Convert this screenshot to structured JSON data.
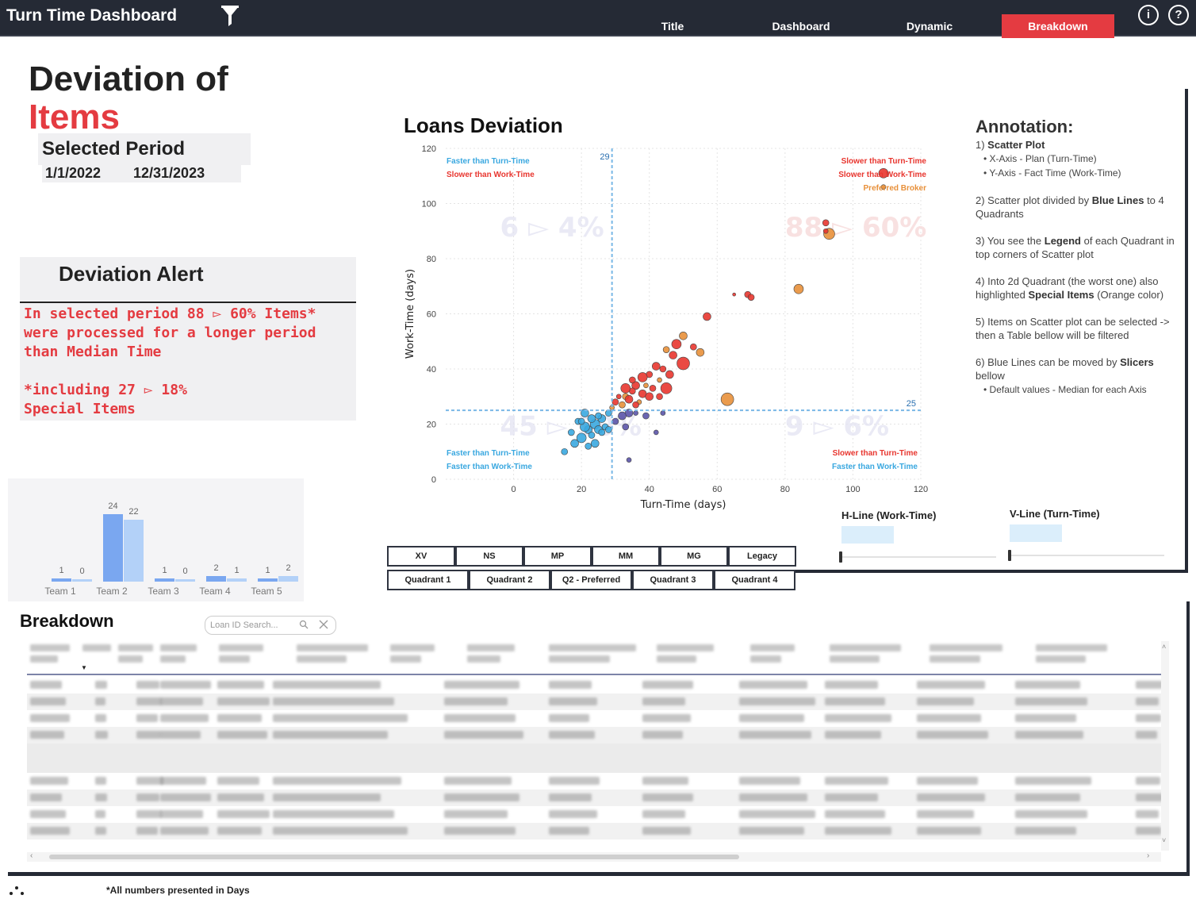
{
  "header": {
    "app_title": "Turn Time Dashboard",
    "tabs": [
      "Title",
      "Dashboard",
      "Dynamic",
      "Breakdown"
    ],
    "active_tab": "Breakdown",
    "info_icon": "i",
    "help_icon": "?",
    "accent_color": "#e43b41"
  },
  "title": {
    "line1": "Deviation of",
    "line2": "Items"
  },
  "period": {
    "label": "Selected Period",
    "start": "1/1/2022",
    "end": "12/31/2023"
  },
  "alert": {
    "title": "Deviation Alert",
    "text": "In selected period 88 ▻ 60% Items*\nwere processed for a longer period\nthan Median Time\n\n*including 27 ▻ 18%\nSpecial Items"
  },
  "team_bars": {
    "teams": [
      "Team 1",
      "Team 2",
      "Team 3",
      "Team 4",
      "Team 5"
    ],
    "series_a": [
      1,
      24,
      1,
      2,
      1
    ],
    "series_b": [
      0,
      22,
      0,
      1,
      2
    ],
    "colors": [
      "#7aa7f0",
      "#b3d1f8"
    ]
  },
  "chart_data": {
    "type": "scatter",
    "title": "Loans Deviation",
    "xlabel": "Turn-Time (days)",
    "ylabel": "Work-Time (days)",
    "xlim": [
      -20,
      120
    ],
    "ylim": [
      0,
      120
    ],
    "xticks": [
      0,
      20,
      40,
      60,
      80,
      100,
      120
    ],
    "yticks": [
      0,
      20,
      40,
      60,
      80,
      100,
      120
    ],
    "v_line": 29,
    "h_line": 25,
    "v_line_label": "29",
    "h_line_label": "25",
    "quadrant_watermarks": [
      "6 ▻ 4%",
      "88 ▻ 60%",
      "45 ▻ 30%",
      "9 ▻ 6%"
    ],
    "legend_tl": [
      "Faster than Turn-Time",
      "Slower than Work-Time"
    ],
    "legend_tr": [
      "Slower than  Turn-Time",
      "Slower than Work-Time",
      "Preferred Broker"
    ],
    "legend_bl": [
      "Faster than Turn-Time",
      "Faster than Work-Time"
    ],
    "legend_br": [
      "Slower than Turn-Time",
      "Faster than Work-Time"
    ],
    "colors": {
      "blue": "#3aa8e0",
      "red": "#e8362f",
      "orange": "#e8903a",
      "purple": "#5b54a8"
    },
    "points": [
      {
        "x": 109,
        "y": 111,
        "r": 6,
        "g": "red"
      },
      {
        "x": 109,
        "y": 106,
        "r": 3,
        "g": "orange"
      },
      {
        "x": 92,
        "y": 93,
        "r": 4,
        "g": "red"
      },
      {
        "x": 93,
        "y": 89,
        "r": 7,
        "g": "orange"
      },
      {
        "x": 92,
        "y": 90,
        "r": 3,
        "g": "red"
      },
      {
        "x": 84,
        "y": 69,
        "r": 6,
        "g": "orange"
      },
      {
        "x": 69,
        "y": 67,
        "r": 4,
        "g": "red"
      },
      {
        "x": 70,
        "y": 66,
        "r": 4,
        "g": "red"
      },
      {
        "x": 65,
        "y": 67,
        "r": 2,
        "g": "red"
      },
      {
        "x": 57,
        "y": 59,
        "r": 5,
        "g": "red"
      },
      {
        "x": 63,
        "y": 29,
        "r": 8,
        "g": "orange"
      },
      {
        "x": 50,
        "y": 52,
        "r": 5,
        "g": "orange"
      },
      {
        "x": 53,
        "y": 48,
        "r": 4,
        "g": "red"
      },
      {
        "x": 55,
        "y": 46,
        "r": 5,
        "g": "orange"
      },
      {
        "x": 48,
        "y": 49,
        "r": 6,
        "g": "red"
      },
      {
        "x": 50,
        "y": 42,
        "r": 8,
        "g": "red"
      },
      {
        "x": 45,
        "y": 47,
        "r": 4,
        "g": "orange"
      },
      {
        "x": 47,
        "y": 45,
        "r": 5,
        "g": "red"
      },
      {
        "x": 44,
        "y": 40,
        "r": 4,
        "g": "red"
      },
      {
        "x": 46,
        "y": 38,
        "r": 5,
        "g": "red"
      },
      {
        "x": 42,
        "y": 41,
        "r": 5,
        "g": "red"
      },
      {
        "x": 43,
        "y": 36,
        "r": 3,
        "g": "orange"
      },
      {
        "x": 40,
        "y": 38,
        "r": 4,
        "g": "red"
      },
      {
        "x": 38,
        "y": 37,
        "r": 6,
        "g": "red"
      },
      {
        "x": 41,
        "y": 33,
        "r": 4,
        "g": "red"
      },
      {
        "x": 39,
        "y": 34,
        "r": 3,
        "g": "orange"
      },
      {
        "x": 36,
        "y": 34,
        "r": 5,
        "g": "red"
      },
      {
        "x": 35,
        "y": 32,
        "r": 4,
        "g": "red"
      },
      {
        "x": 38,
        "y": 31,
        "r": 5,
        "g": "red"
      },
      {
        "x": 33,
        "y": 30,
        "r": 4,
        "g": "orange"
      },
      {
        "x": 34,
        "y": 29,
        "r": 5,
        "g": "red"
      },
      {
        "x": 31,
        "y": 30,
        "r": 3,
        "g": "red"
      },
      {
        "x": 32,
        "y": 27,
        "r": 4,
        "g": "orange"
      },
      {
        "x": 30,
        "y": 28,
        "r": 4,
        "g": "red"
      },
      {
        "x": 45,
        "y": 33,
        "r": 7,
        "g": "red"
      },
      {
        "x": 37,
        "y": 28,
        "r": 3,
        "g": "orange"
      },
      {
        "x": 43,
        "y": 30,
        "r": 4,
        "g": "red"
      },
      {
        "x": 35,
        "y": 36,
        "r": 4,
        "g": "red"
      },
      {
        "x": 29,
        "y": 26,
        "r": 3,
        "g": "orange"
      },
      {
        "x": 36,
        "y": 27,
        "r": 4,
        "g": "red"
      },
      {
        "x": 33,
        "y": 33,
        "r": 6,
        "g": "red"
      },
      {
        "x": 40,
        "y": 30,
        "r": 5,
        "g": "red"
      },
      {
        "x": 34,
        "y": 24,
        "r": 5,
        "g": "purple"
      },
      {
        "x": 32,
        "y": 23,
        "r": 5,
        "g": "purple"
      },
      {
        "x": 39,
        "y": 23,
        "r": 4,
        "g": "purple"
      },
      {
        "x": 36,
        "y": 24,
        "r": 3,
        "g": "purple"
      },
      {
        "x": 33,
        "y": 19,
        "r": 4,
        "g": "purple"
      },
      {
        "x": 42,
        "y": 17,
        "r": 3,
        "g": "purple"
      },
      {
        "x": 34,
        "y": 7,
        "r": 3,
        "g": "purple"
      },
      {
        "x": 44,
        "y": 24,
        "r": 3,
        "g": "purple"
      },
      {
        "x": 30,
        "y": 21,
        "r": 4,
        "g": "purple"
      },
      {
        "x": 24,
        "y": 20,
        "r": 6,
        "g": "blue"
      },
      {
        "x": 22,
        "y": 18,
        "r": 5,
        "g": "blue"
      },
      {
        "x": 26,
        "y": 22,
        "r": 5,
        "g": "blue"
      },
      {
        "x": 20,
        "y": 15,
        "r": 6,
        "g": "blue"
      },
      {
        "x": 18,
        "y": 13,
        "r": 5,
        "g": "blue"
      },
      {
        "x": 23,
        "y": 16,
        "r": 4,
        "g": "blue"
      },
      {
        "x": 25,
        "y": 18,
        "r": 5,
        "g": "blue"
      },
      {
        "x": 21,
        "y": 24,
        "r": 5,
        "g": "blue"
      },
      {
        "x": 27,
        "y": 19,
        "r": 4,
        "g": "blue"
      },
      {
        "x": 15,
        "y": 10,
        "r": 4,
        "g": "blue"
      },
      {
        "x": 19,
        "y": 21,
        "r": 4,
        "g": "blue"
      },
      {
        "x": 28,
        "y": 24,
        "r": 4,
        "g": "blue"
      },
      {
        "x": 22,
        "y": 12,
        "r": 4,
        "g": "blue"
      },
      {
        "x": 24,
        "y": 13,
        "r": 5,
        "g": "blue"
      },
      {
        "x": 26,
        "y": 17,
        "r": 4,
        "g": "blue"
      },
      {
        "x": 17,
        "y": 17,
        "r": 4,
        "g": "blue"
      },
      {
        "x": 21,
        "y": 19,
        "r": 6,
        "g": "blue"
      },
      {
        "x": 25,
        "y": 23,
        "r": 4,
        "g": "blue"
      },
      {
        "x": 23,
        "y": 22,
        "r": 5,
        "g": "blue"
      },
      {
        "x": 28,
        "y": 18,
        "r": 4,
        "g": "blue"
      },
      {
        "x": 20,
        "y": 21,
        "r": 4,
        "g": "blue"
      }
    ]
  },
  "annotation": {
    "title": "Annotation:",
    "i1_num": "1) ",
    "i1_bold": "Scatter Plot",
    "i1_s1": "• X-Axis - Plan (Turn-Time)",
    "i1_s2": "• Y-Axis - Fact Time (Work-Time)",
    "i2_a": "2) Scatter plot divided by ",
    "i2_bold": "Blue Lines",
    "i2_b": " to 4 Quadrants",
    "i3_a": "3) You see the ",
    "i3_bold": "Legend",
    "i3_b": " of each Quadrant in top corners of Scatter plot",
    "i4_a": "4) Into 2d Quadrant (the worst one) also highlighted ",
    "i4_bold": "Special Items",
    "i4_b": " (Orange color)",
    "i5": "5) Items on Scatter plot can be selected -> then a Table bellow will be filtered",
    "i6_a": "6) Blue Lines can be moved by ",
    "i6_bold": "Slicers",
    "i6_b": " bellow",
    "i6_s1": "• Default values - Median for each Axis"
  },
  "slicers": {
    "h_title": "H-Line (Work-Time)",
    "v_title": "V-Line (Turn-Time)"
  },
  "buttons": {
    "row1": [
      "XV",
      "NS",
      "MP",
      "MM",
      "MG",
      "Legacy"
    ],
    "row2": [
      "Quadrant 1",
      "Quadrant 2",
      "Q2 - Preferred",
      "Quadrant 3",
      "Quadrant 4"
    ]
  },
  "breakdown": {
    "title": "Breakdown",
    "search_placeholder": "Loan ID Search...",
    "footnote": "*All numbers presented in Days"
  }
}
